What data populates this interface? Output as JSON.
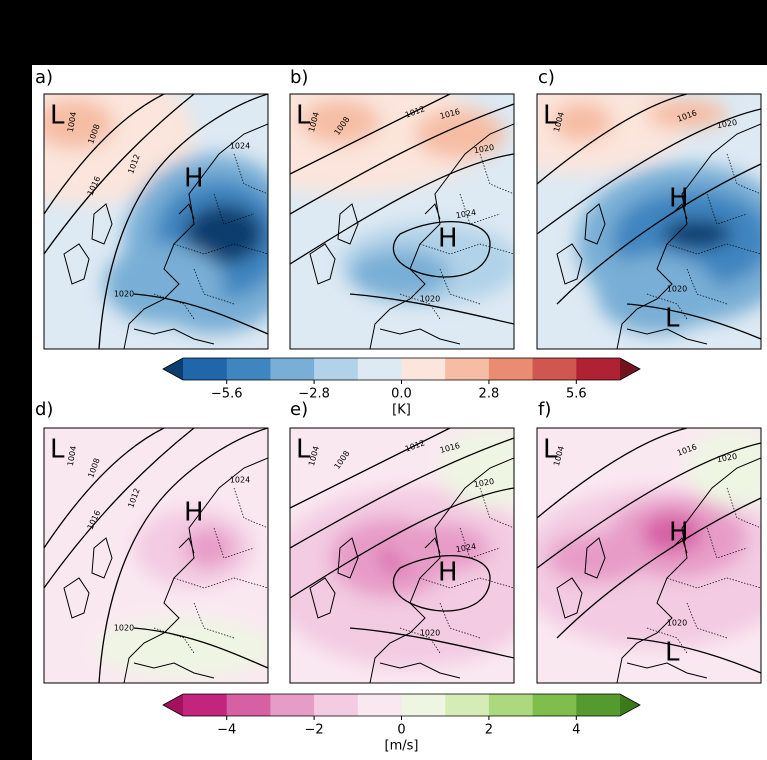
{
  "panels": [
    {
      "label": "a)",
      "markers": [
        "L",
        "H"
      ],
      "contour_labels": [
        1004,
        1008,
        1012,
        1016,
        1024,
        1020
      ]
    },
    {
      "label": "b)",
      "markers": [
        "L",
        "H"
      ],
      "contour_labels": [
        1004,
        1008,
        1012,
        1016,
        1020,
        1024,
        1020
      ]
    },
    {
      "label": "c)",
      "markers": [
        "L",
        "H",
        "L"
      ],
      "contour_labels": [
        1004,
        1016,
        1020,
        1020
      ]
    },
    {
      "label": "d)",
      "markers": [
        "L",
        "H"
      ],
      "contour_labels": [
        1004,
        1008,
        1012,
        1016,
        1024,
        1020
      ]
    },
    {
      "label": "e)",
      "markers": [
        "L",
        "H"
      ],
      "contour_labels": [
        1004,
        1008,
        1012,
        1016,
        1020,
        1024,
        1020
      ]
    },
    {
      "label": "f)",
      "markers": [
        "L",
        "H",
        "L"
      ],
      "contour_labels": [
        1004,
        1016,
        1020,
        1020
      ]
    }
  ],
  "colorbars": [
    {
      "unit": "[K]",
      "lim": [
        -7,
        7
      ],
      "colors": [
        "#1f66aa",
        "#3f85c0",
        "#79afd6",
        "#b1d2e8",
        "#dde9f3",
        "#fbe5dc",
        "#f6bda4",
        "#e98c72",
        "#d05750",
        "#b02133"
      ],
      "extend_colors": [
        "#0d3c6e",
        "#75121f"
      ],
      "ticks": [
        {
          "value": -5.6,
          "label": "−5.6"
        },
        {
          "value": -2.8,
          "label": "−2.8"
        },
        {
          "value": 0,
          "label": "0.0"
        },
        2.8,
        5.6
      ]
    },
    {
      "unit": "[m/s]",
      "lim": [
        -5,
        5
      ],
      "colors": [
        "#c2247e",
        "#d760a4",
        "#e79cc8",
        "#f3cbe2",
        "#fae8f1",
        "#eef5e3",
        "#d5ecb7",
        "#acd87e",
        "#7fbe4c",
        "#559a2e"
      ],
      "extend_colors": [
        "#a3115f",
        "#3a7a1d"
      ],
      "ticks": [
        {
          "value": -4,
          "label": "−4"
        },
        {
          "value": -2,
          "label": "−2"
        },
        0,
        2,
        4
      ]
    }
  ]
}
